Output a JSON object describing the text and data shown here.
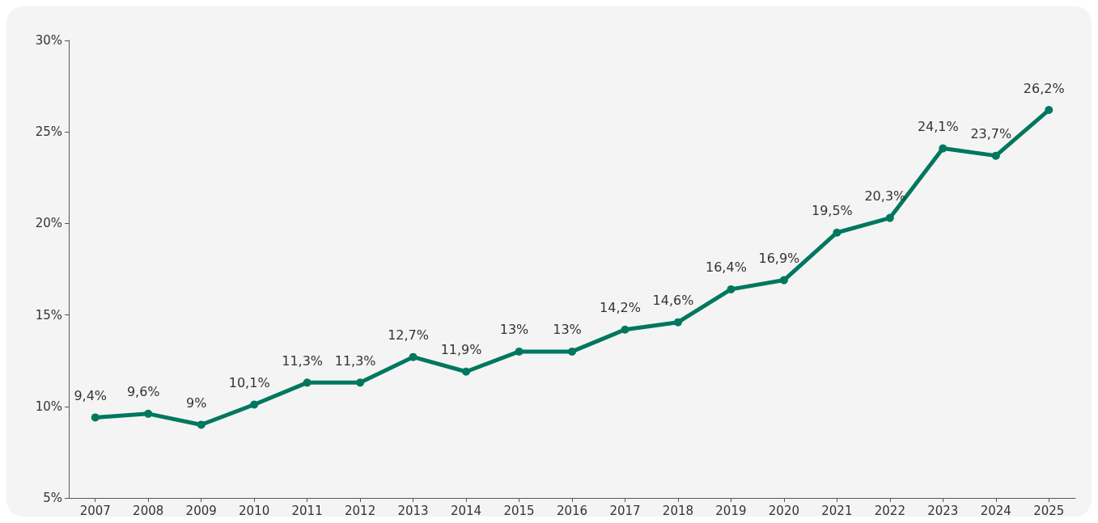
{
  "chart_data": {
    "type": "line",
    "categories": [
      "2007",
      "2008",
      "2009",
      "2010",
      "2011",
      "2012",
      "2013",
      "2014",
      "2015",
      "2016",
      "2017",
      "2018",
      "2019",
      "2020",
      "2021",
      "2022",
      "2023",
      "2024",
      "2025"
    ],
    "series": [
      {
        "color": "#00775f",
        "values": [
          9.4,
          9.6,
          9,
          10.1,
          11.3,
          11.3,
          12.7,
          11.9,
          13,
          13,
          14.2,
          14.6,
          16.4,
          16.9,
          19.5,
          20.3,
          24.1,
          23.7,
          26.2
        ],
        "value_labels": [
          "9,4%",
          "9,6%",
          "9%",
          "10,1%",
          "11,3%",
          "11,3%",
          "12,7%",
          "11,9%",
          "13%",
          "13%",
          "14,2%",
          "14,6%",
          "16,4%",
          "16,9%",
          "19,5%",
          "20,3%",
          "24,1%",
          "23,7%",
          "26,2%"
        ]
      }
    ],
    "ylim": [
      5,
      30
    ],
    "yticks": [
      {
        "value": 5,
        "label": "5%"
      },
      {
        "value": 10,
        "label": "10%"
      },
      {
        "value": 15,
        "label": "15%"
      },
      {
        "value": 20,
        "label": "20%"
      },
      {
        "value": 25,
        "label": "25%"
      },
      {
        "value": 30,
        "label": "30%"
      }
    ],
    "grid": false,
    "marker": "circle",
    "line_style": "solid"
  }
}
